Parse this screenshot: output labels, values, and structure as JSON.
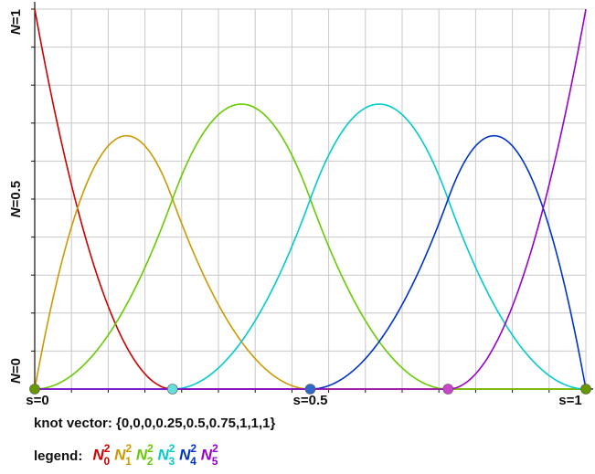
{
  "chart_data": {
    "type": "line",
    "title": "",
    "xlabel": "s",
    "ylabel": "N",
    "xlim": [
      0,
      1
    ],
    "ylim": [
      0,
      1
    ],
    "x_tick_labels": [
      "s=0",
      "s=0.5",
      "s=1"
    ],
    "y_tick_labels": [
      "N=0",
      "N=0.5",
      "N=1"
    ],
    "grid": true,
    "degree": 2,
    "knots": [
      0,
      0,
      0,
      0.25,
      0.5,
      0.75,
      1,
      1,
      1
    ],
    "series": [
      {
        "name": "N",
        "index": "0",
        "power": "2",
        "color": "#cc0000"
      },
      {
        "name": "N",
        "index": "1",
        "power": "2",
        "color": "#cc9900"
      },
      {
        "name": "N",
        "index": "2",
        "power": "2",
        "color": "#66cc00"
      },
      {
        "name": "N",
        "index": "3",
        "power": "2",
        "color": "#00cccc"
      },
      {
        "name": "N",
        "index": "4",
        "power": "2",
        "color": "#0033cc"
      },
      {
        "name": "N",
        "index": "5",
        "power": "2",
        "color": "#9900cc"
      }
    ],
    "knot_markers": [
      {
        "s": 0,
        "color": "#669900"
      },
      {
        "s": 0.25,
        "color": "#66dddd"
      },
      {
        "s": 0.5,
        "color": "#3366cc"
      },
      {
        "s": 0.75,
        "color": "#cc44cc"
      },
      {
        "s": 1,
        "color": "#669900"
      }
    ]
  },
  "knot_text": "knot vector: {0,0,0,0.25,0.5,0.75,1,1,1}",
  "legend_label": "legend:"
}
